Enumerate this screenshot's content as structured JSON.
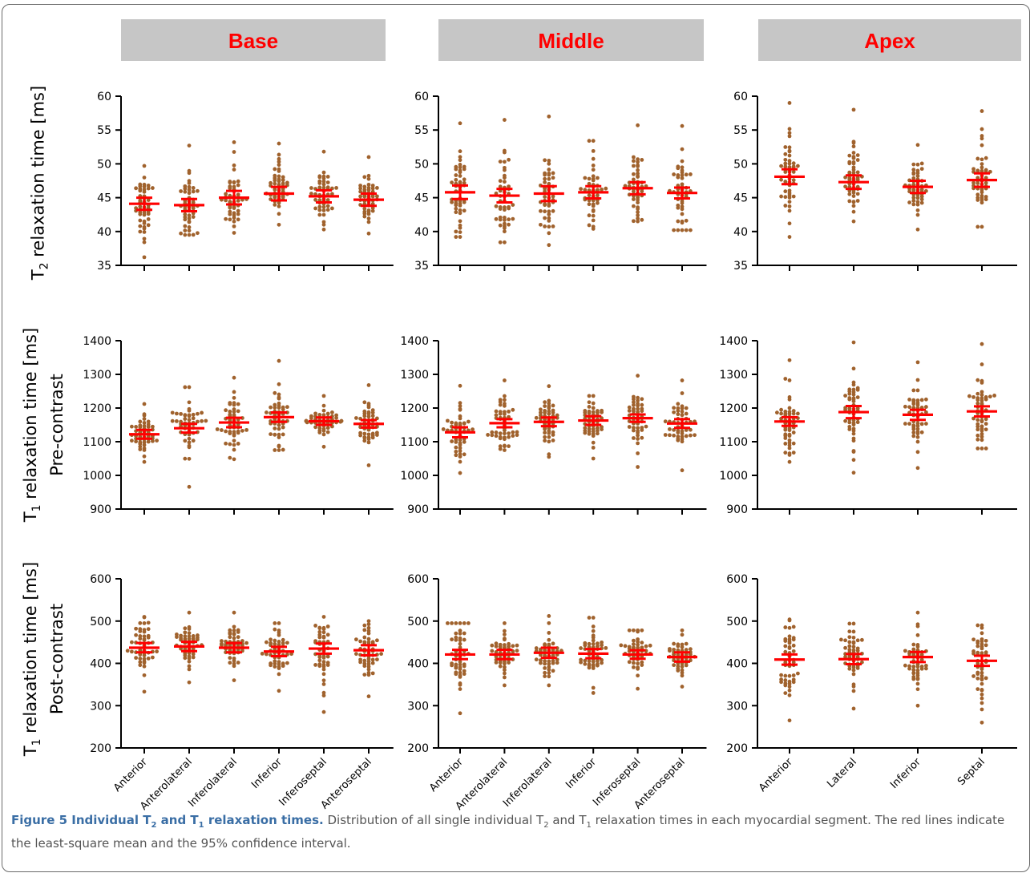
{
  "figure": {
    "column_headers": [
      "Base",
      "Middle",
      "Apex"
    ],
    "row_labels": [
      {
        "line1_pre": "T",
        "line1_sub": "2",
        "line1_post": " relaxation time [ms]",
        "line2": ""
      },
      {
        "line1_pre": "T",
        "line1_sub": "1",
        "line1_post": " relaxation time [ms]",
        "line2": "Pre-contrast"
      },
      {
        "line1_pre": "T",
        "line1_sub": "1",
        "line1_post": " relaxation time [ms]",
        "line2": "Post-contrast"
      }
    ],
    "caption": {
      "title_a": "Figure 5 Individual T",
      "title_sub1": "2",
      "title_b": " and T",
      "title_sub2": "1",
      "title_c": " relaxation times.",
      "text_a": " Distribution of all single individual T",
      "text_sub1": "2",
      "text_b": " and T",
      "text_sub2": "1",
      "text_c": " relaxation times in each myocardial segment. The red lines indicate the least-square mean and the 95% confidence interval."
    }
  },
  "colors": {
    "points": "#a0622d",
    "mean": "#ff0000",
    "header_bg": "#c6c6c6",
    "axis": "#000000"
  },
  "chart_data": [
    {
      "type": "scatter",
      "panel": "Base / T2",
      "ylim": [
        35,
        60
      ],
      "yticks": [
        35,
        40,
        45,
        50,
        55,
        60
      ],
      "categories": [
        "Anterior",
        "Anterolateral",
        "Inferolateral",
        "Inferior",
        "Inferoseptal",
        "Anteroseptal"
      ],
      "means": [
        44.1,
        43.9,
        45.0,
        45.6,
        45.2,
        44.7
      ],
      "ci": [
        0.9,
        0.9,
        1.0,
        1.0,
        0.9,
        0.9
      ],
      "ranges": [
        [
          36.2,
          49.7
        ],
        [
          39.5,
          52.7
        ],
        [
          39.8,
          53.2
        ],
        [
          41.0,
          53.0
        ],
        [
          40.3,
          51.8
        ],
        [
          39.7,
          51.0
        ]
      ]
    },
    {
      "type": "scatter",
      "panel": "Middle / T2",
      "ylim": [
        35,
        60
      ],
      "yticks": [
        35,
        40,
        45,
        50,
        55,
        60
      ],
      "categories": [
        "Anterior",
        "Anterolateral",
        "Inferolateral",
        "Inferior",
        "Inferoseptal",
        "Anteroseptal"
      ],
      "means": [
        45.8,
        45.3,
        45.6,
        45.8,
        46.4,
        45.7
      ],
      "ci": [
        1.0,
        1.0,
        1.1,
        0.9,
        0.9,
        0.8
      ],
      "ranges": [
        [
          39.2,
          56.0
        ],
        [
          38.4,
          56.5
        ],
        [
          38.0,
          57.0
        ],
        [
          40.4,
          53.4
        ],
        [
          41.5,
          55.7
        ],
        [
          40.2,
          55.6
        ]
      ]
    },
    {
      "type": "scatter",
      "panel": "Apex / T2",
      "ylim": [
        35,
        60
      ],
      "yticks": [
        35,
        40,
        45,
        50,
        55,
        60
      ],
      "categories": [
        "Anterior",
        "Lateral",
        "Inferior",
        "Septal"
      ],
      "means": [
        48.1,
        47.3,
        46.6,
        47.6
      ],
      "ci": [
        1.1,
        1.0,
        0.9,
        1.0
      ],
      "ranges": [
        [
          39.2,
          59.0
        ],
        [
          41.5,
          58.0
        ],
        [
          40.3,
          52.8
        ],
        [
          40.7,
          57.8
        ]
      ]
    },
    {
      "type": "scatter",
      "panel": "Base / T1 pre-contrast",
      "ylim": [
        900,
        1400
      ],
      "yticks": [
        900,
        1000,
        1100,
        1200,
        1300,
        1400
      ],
      "categories": [
        "Anterior",
        "Anterolateral",
        "Inferolateral",
        "Inferior",
        "Inferoseptal",
        "Anteroseptal"
      ],
      "means": [
        1122,
        1140,
        1157,
        1173,
        1161,
        1153
      ],
      "ci": [
        13,
        13,
        14,
        14,
        11,
        11
      ],
      "ranges": [
        [
          1040,
          1212
        ],
        [
          966,
          1262
        ],
        [
          1048,
          1290
        ],
        [
          1075,
          1340
        ],
        [
          1085,
          1236
        ],
        [
          1030,
          1268
        ]
      ]
    },
    {
      "type": "scatter",
      "panel": "Middle / T1 pre-contrast",
      "ylim": [
        900,
        1400
      ],
      "yticks": [
        900,
        1000,
        1100,
        1200,
        1300,
        1400
      ],
      "categories": [
        "Anterior",
        "Anterolateral",
        "Inferolateral",
        "Inferior",
        "Inferoseptal",
        "Anteroseptal"
      ],
      "means": [
        1128,
        1155,
        1159,
        1163,
        1170,
        1154
      ],
      "ci": [
        15,
        12,
        13,
        13,
        11,
        13
      ],
      "ranges": [
        [
          1007,
          1266
        ],
        [
          1075,
          1282
        ],
        [
          1055,
          1265
        ],
        [
          1050,
          1236
        ],
        [
          1025,
          1296
        ],
        [
          1015,
          1282
        ]
      ]
    },
    {
      "type": "scatter",
      "panel": "Apex / T1 pre-contrast",
      "ylim": [
        900,
        1400
      ],
      "yticks": [
        900,
        1000,
        1100,
        1200,
        1300,
        1400
      ],
      "categories": [
        "Anterior",
        "Lateral",
        "Inferior",
        "Septal"
      ],
      "means": [
        1160,
        1188,
        1180,
        1190
      ],
      "ci": [
        13,
        18,
        15,
        15
      ],
      "ranges": [
        [
          1040,
          1342
        ],
        [
          1008,
          1395
        ],
        [
          1022,
          1336
        ],
        [
          1080,
          1390
        ]
      ]
    },
    {
      "type": "scatter",
      "panel": "Base / T1 post-contrast",
      "ylim": [
        200,
        600
      ],
      "yticks": [
        200,
        300,
        400,
        500,
        600
      ],
      "categories": [
        "Anterior",
        "Anterolateral",
        "Inferolateral",
        "Inferior",
        "Inferoseptal",
        "Anteroseptal"
      ],
      "means": [
        437,
        440,
        437,
        428,
        435,
        431
      ],
      "ci": [
        11,
        11,
        11,
        11,
        12,
        12
      ],
      "ranges": [
        [
          333,
          510
        ],
        [
          355,
          520
        ],
        [
          360,
          520
        ],
        [
          335,
          495
        ],
        [
          285,
          510
        ],
        [
          322,
          500
        ]
      ]
    },
    {
      "type": "scatter",
      "panel": "Middle / T1 post-contrast",
      "ylim": [
        200,
        600
      ],
      "yticks": [
        200,
        300,
        400,
        500,
        600
      ],
      "categories": [
        "Anterior",
        "Anterolateral",
        "Inferolateral",
        "Inferior",
        "Inferoseptal",
        "Anteroseptal"
      ],
      "means": [
        421,
        421,
        425,
        423,
        421,
        415
      ],
      "ci": [
        11,
        11,
        12,
        11,
        10,
        11
      ],
      "ranges": [
        [
          282,
          495
        ],
        [
          348,
          495
        ],
        [
          348,
          512
        ],
        [
          330,
          508
        ],
        [
          340,
          478
        ],
        [
          345,
          478
        ]
      ]
    },
    {
      "type": "scatter",
      "panel": "Apex / T1 post-contrast",
      "ylim": [
        200,
        600
      ],
      "yticks": [
        200,
        300,
        400,
        500,
        600
      ],
      "categories": [
        "Anterior",
        "Lateral",
        "Inferior",
        "Septal"
      ],
      "means": [
        409,
        410,
        415,
        406
      ],
      "ci": [
        12,
        12,
        12,
        12
      ],
      "ranges": [
        [
          265,
          504
        ],
        [
          293,
          494
        ],
        [
          300,
          520
        ],
        [
          260,
          490
        ]
      ]
    }
  ]
}
